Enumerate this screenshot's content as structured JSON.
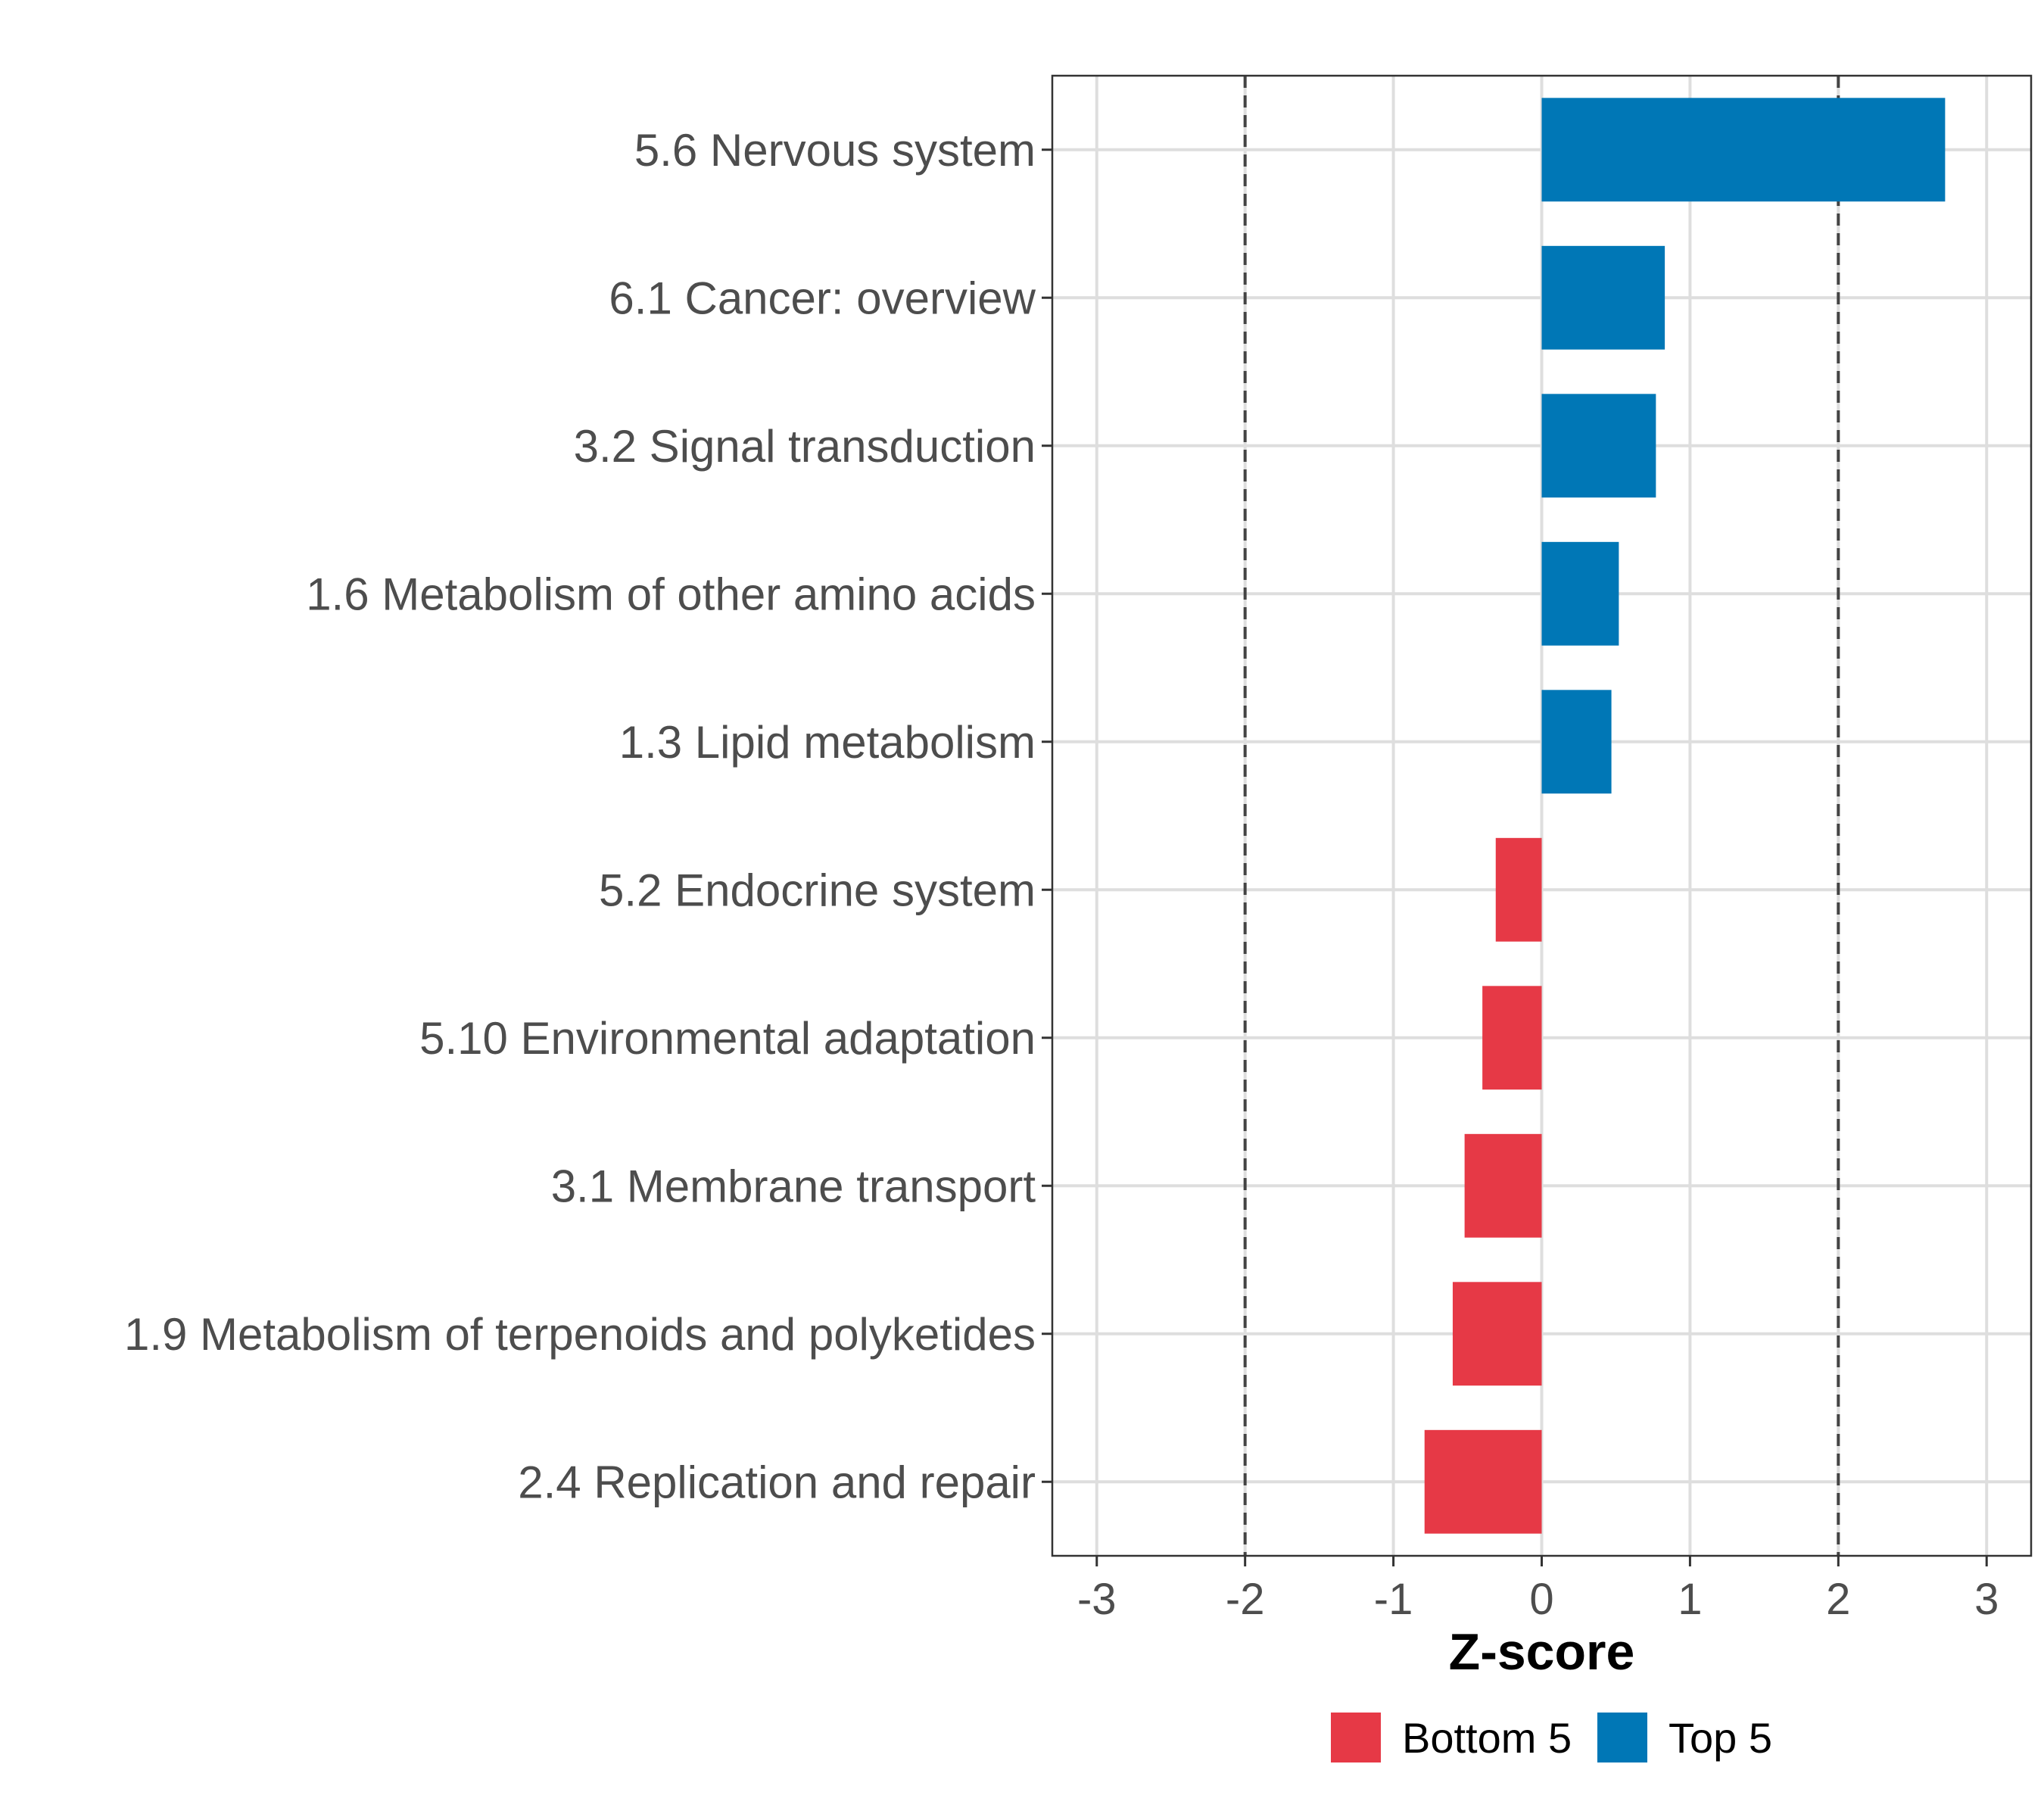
{
  "chart_data": {
    "type": "bar",
    "orientation": "horizontal",
    "xlabel": "Z-score",
    "xlim": [
      -3.3,
      3.3
    ],
    "xticks": [
      -3,
      -2,
      -1,
      0,
      1,
      2,
      3
    ],
    "xtick_labels": [
      "-3",
      "-2",
      "-1",
      "0",
      "1",
      "2",
      "3"
    ],
    "reference_lines": [
      -2,
      2
    ],
    "grid": true,
    "categories": [
      "5.6 Nervous system",
      "6.1 Cancer: overview",
      "3.2 Signal transduction",
      "1.6 Metabolism of other amino acids",
      "1.3 Lipid metabolism",
      "5.2 Endocrine system",
      "5.10 Environmental adaptation",
      "3.1 Membrane transport",
      "1.9 Metabolism of terpenoids and polyketides",
      "2.4 Replication and repair"
    ],
    "values": [
      2.72,
      0.83,
      0.77,
      0.52,
      0.47,
      -0.31,
      -0.4,
      -0.52,
      -0.6,
      -0.79
    ],
    "groups": [
      "Top 5",
      "Top 5",
      "Top 5",
      "Top 5",
      "Top 5",
      "Bottom 5",
      "Bottom 5",
      "Bottom 5",
      "Bottom 5",
      "Bottom 5"
    ],
    "legend": {
      "position": "bottom",
      "entries": [
        {
          "label": "Bottom 5",
          "color": "#e63946"
        },
        {
          "label": "Top 5",
          "color": "#0077b6"
        }
      ]
    }
  }
}
